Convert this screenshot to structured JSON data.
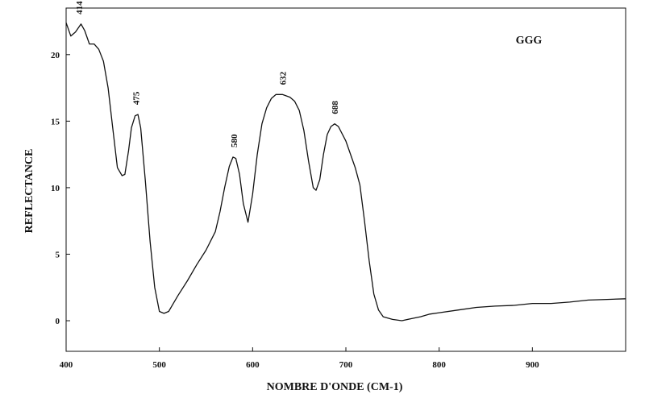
{
  "chart_data": {
    "type": "line",
    "title": "",
    "xlabel": "NOMBRE D'ONDE (CM-1)",
    "ylabel": "REFLECTANCE",
    "xlim": [
      400,
      1000
    ],
    "ylim": [
      -2.3,
      23.5
    ],
    "x_ticks": [
      400,
      500,
      600,
      700,
      800,
      900
    ],
    "y_ticks": [
      0,
      5,
      10,
      15,
      20
    ],
    "grid": false,
    "legend": "top-right",
    "series": [
      {
        "name": "GGG",
        "color": "#111111",
        "x": [
          400,
          405,
          410,
          416,
          420,
          425,
          430,
          435,
          440,
          445,
          450,
          455,
          460,
          463,
          467,
          470,
          474,
          477,
          480,
          485,
          490,
          495,
          500,
          505,
          510,
          515,
          520,
          530,
          540,
          550,
          560,
          565,
          570,
          575,
          579,
          582,
          586,
          590,
          595,
          600,
          605,
          610,
          615,
          620,
          625,
          632,
          640,
          645,
          650,
          655,
          660,
          665,
          668,
          672,
          676,
          680,
          684,
          688,
          692,
          700,
          710,
          715,
          720,
          725,
          730,
          735,
          740,
          750,
          760,
          770,
          780,
          790,
          800,
          820,
          840,
          860,
          880,
          900,
          920,
          940,
          960,
          980,
          1000
        ],
        "y": [
          22.4,
          21.4,
          21.7,
          22.3,
          21.8,
          20.8,
          20.8,
          20.4,
          19.5,
          17.5,
          14.5,
          11.5,
          10.9,
          11.0,
          12.8,
          14.5,
          15.4,
          15.5,
          14.5,
          10.5,
          6.0,
          2.5,
          0.7,
          0.55,
          0.7,
          1.3,
          1.9,
          3.0,
          4.2,
          5.3,
          6.7,
          8.2,
          10.0,
          11.6,
          12.3,
          12.2,
          11.0,
          8.8,
          7.4,
          9.5,
          12.5,
          14.8,
          16.0,
          16.7,
          17.0,
          17.0,
          16.8,
          16.5,
          15.8,
          14.3,
          12.0,
          10.0,
          9.8,
          10.6,
          12.5,
          14.0,
          14.6,
          14.8,
          14.6,
          13.5,
          11.5,
          10.2,
          7.5,
          4.5,
          2.0,
          0.8,
          0.3,
          0.1,
          0.0,
          0.15,
          0.3,
          0.5,
          0.6,
          0.8,
          1.0,
          1.1,
          1.15,
          1.3,
          1.3,
          1.4,
          1.55,
          1.6,
          1.65
        ]
      }
    ],
    "annotations": [
      {
        "x": 414,
        "y": 22.3,
        "text": "414"
      },
      {
        "x": 475,
        "y": 15.5,
        "text": "475"
      },
      {
        "x": 580,
        "y": 12.3,
        "text": "580"
      },
      {
        "x": 632,
        "y": 17.0,
        "text": "632"
      },
      {
        "x": 688,
        "y": 14.8,
        "text": "688"
      }
    ]
  }
}
